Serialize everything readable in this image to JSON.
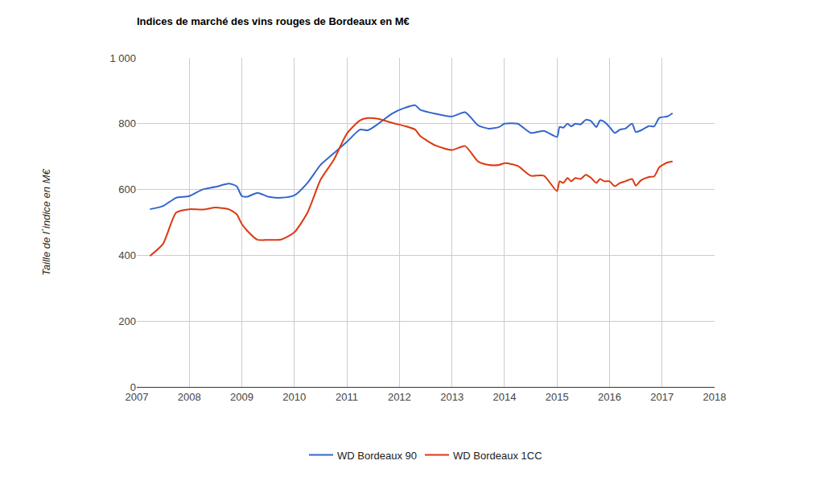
{
  "chart_data": {
    "type": "line",
    "title": "Indices de marché des vins rouges de Bordeaux en M€",
    "y_label": "Taille de l´indice en M€",
    "x": [
      2007.25,
      2007.5,
      2007.75,
      2008,
      2008.25,
      2008.5,
      2008.75,
      2008.9,
      2009,
      2009.1,
      2009.3,
      2009.5,
      2009.75,
      2010,
      2010.25,
      2010.5,
      2010.75,
      2011,
      2011.25,
      2011.4,
      2011.6,
      2011.85,
      2012.1,
      2012.3,
      2012.4,
      2012.7,
      2013,
      2013.25,
      2013.5,
      2013.7,
      2013.9,
      2014,
      2014.25,
      2014.5,
      2014.75,
      2015,
      2015.05,
      2015.12,
      2015.2,
      2015.27,
      2015.35,
      2015.45,
      2015.55,
      2015.65,
      2015.75,
      2015.82,
      2015.9,
      2016,
      2016.1,
      2016.2,
      2016.3,
      2016.43,
      2016.5,
      2016.6,
      2016.75,
      2016.85,
      2016.95,
      2017.1,
      2017.2
    ],
    "series": [
      {
        "name": "WD Bordeaux 90",
        "color": "#3366cc",
        "values": [
          540,
          550,
          575,
          580,
          600,
          608,
          618,
          610,
          580,
          578,
          590,
          578,
          575,
          582,
          620,
          675,
          710,
          745,
          782,
          780,
          800,
          830,
          848,
          856,
          842,
          830,
          822,
          835,
          795,
          785,
          790,
          800,
          800,
          772,
          778,
          760,
          790,
          788,
          800,
          792,
          800,
          798,
          812,
          808,
          790,
          810,
          806,
          790,
          772,
          782,
          785,
          800,
          775,
          780,
          793,
          792,
          818,
          822,
          832
        ]
      },
      {
        "name": "WD Bordeaux 1CC",
        "color": "#dc3912",
        "values": [
          398,
          435,
          530,
          540,
          539,
          545,
          540,
          525,
          495,
          475,
          447,
          447,
          448,
          470,
          530,
          630,
          690,
          770,
          810,
          817,
          815,
          803,
          793,
          782,
          762,
          733,
          720,
          732,
          685,
          675,
          675,
          680,
          672,
          642,
          642,
          595,
          625,
          620,
          635,
          625,
          635,
          632,
          645,
          635,
          620,
          632,
          625,
          625,
          610,
          620,
          625,
          632,
          612,
          628,
          638,
          640,
          668,
          682,
          685
        ]
      }
    ],
    "xlim": [
      2007,
      2018
    ],
    "xticks": [
      2007,
      2008,
      2009,
      2010,
      2011,
      2012,
      2013,
      2014,
      2015,
      2016,
      2017,
      2018
    ],
    "ylim": [
      0,
      1000
    ],
    "yticks": [
      0,
      200,
      400,
      600,
      800,
      {
        "value": 1000,
        "label": "1 000"
      }
    ],
    "grid": true,
    "legend": "bottom"
  }
}
